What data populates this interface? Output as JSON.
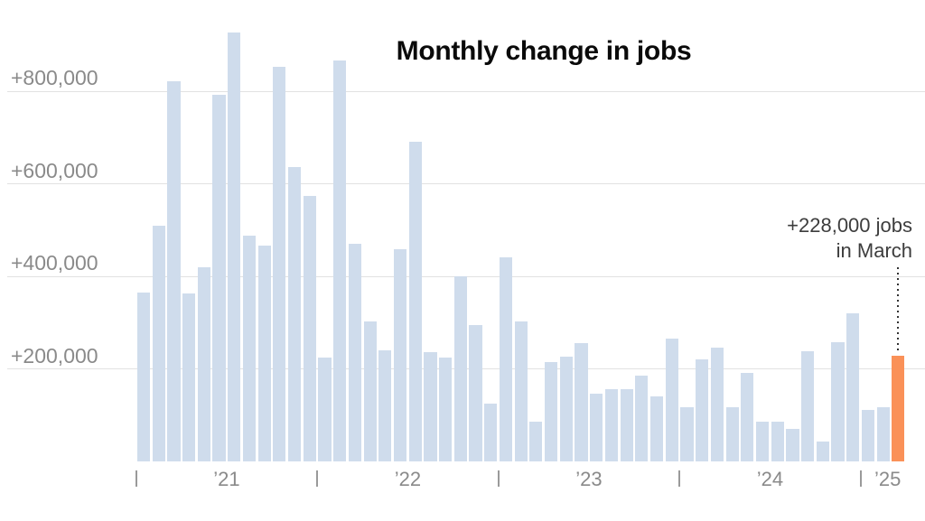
{
  "chart_data": {
    "type": "bar",
    "title": "Monthly change in jobs",
    "unit": "jobs",
    "grid": "on",
    "ylim": [
      0,
      950000
    ],
    "categories": [
      "Jan 2021",
      "Feb 2021",
      "Mar 2021",
      "Apr 2021",
      "May 2021",
      "Jun 2021",
      "Jul 2021",
      "Aug 2021",
      "Sep 2021",
      "Oct 2021",
      "Nov 2021",
      "Dec 2021",
      "Jan 2022",
      "Feb 2022",
      "Mar 2022",
      "Apr 2022",
      "May 2022",
      "Jun 2022",
      "Jul 2022",
      "Aug 2022",
      "Sep 2022",
      "Oct 2022",
      "Nov 2022",
      "Dec 2022",
      "Jan 2023",
      "Feb 2023",
      "Mar 2023",
      "Apr 2023",
      "May 2023",
      "Jun 2023",
      "Jul 2023",
      "Aug 2023",
      "Sep 2023",
      "Oct 2023",
      "Nov 2023",
      "Dec 2023",
      "Jan 2024",
      "Feb 2024",
      "Mar 2024",
      "Apr 2024",
      "May 2024",
      "Jun 2024",
      "Jul 2024",
      "Aug 2024",
      "Sep 2024",
      "Oct 2024",
      "Nov 2024",
      "Dec 2024",
      "Jan 2025",
      "Feb 2025",
      "Mar 2025"
    ],
    "values": [
      365000,
      509000,
      821000,
      363000,
      419000,
      792000,
      928000,
      488000,
      466000,
      854000,
      636000,
      573000,
      224000,
      866000,
      470000,
      302000,
      240000,
      458000,
      692000,
      236000,
      224000,
      400000,
      294000,
      125000,
      441000,
      302000,
      85000,
      215000,
      226000,
      255000,
      146000,
      156000,
      156000,
      185000,
      140000,
      265000,
      117000,
      220000,
      246000,
      117000,
      191000,
      86000,
      86000,
      70000,
      238000,
      43000,
      257000,
      320000,
      111000,
      117000,
      228000
    ],
    "y_axis": {
      "ticks": [
        {
          "value": 200000,
          "label": "+200,000"
        },
        {
          "value": 400000,
          "label": "+400,000"
        },
        {
          "value": 600000,
          "label": "+600,000"
        },
        {
          "value": 800000,
          "label": "+800,000"
        }
      ]
    },
    "x_axis": {
      "year_labels": [
        "’21",
        "’22",
        "’23",
        "’24",
        "’25"
      ]
    },
    "highlight": {
      "index": 50,
      "value": 228000,
      "annotation_line1": "+228,000 jobs",
      "annotation_line2": "in March"
    },
    "colors": {
      "bar": "#cfdcec",
      "highlight": "#fa9158",
      "grid": "#e2e2e2",
      "axis_text": "#8a8a8a",
      "annotation_text": "#3d3d3d",
      "title_text": "#0a0a0a",
      "tick": "#9a9a9a",
      "leader_dots": "#333333"
    },
    "legend": "none"
  }
}
